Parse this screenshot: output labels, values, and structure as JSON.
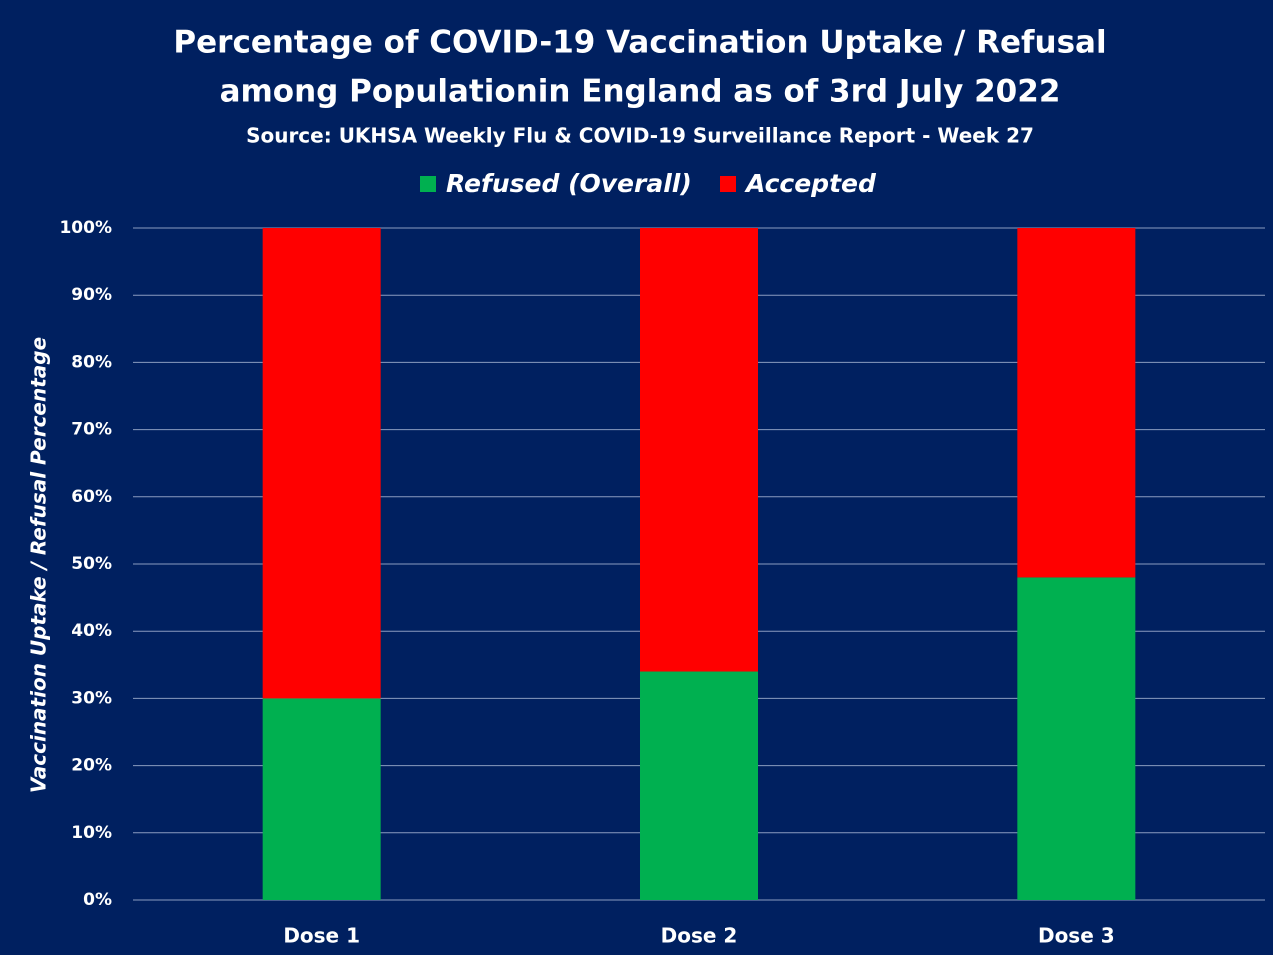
{
  "chart_data": {
    "type": "bar",
    "stacked": true,
    "title": [
      "Percentage of COVID-19 Vaccination Uptake / Refusal",
      "among Populationin England as of 3rd July 2022"
    ],
    "subtitle": "Source: UKHSA Weekly Flu & COVID-19 Surveillance Report - Week 27",
    "y_label": "Vaccination Uptake / Refusal Percentage",
    "categories": [
      "Dose 1",
      "Dose 2",
      "Dose 3"
    ],
    "series": [
      {
        "name": "Refused (Overall)",
        "color": "#00b050",
        "values": [
          30,
          34,
          48
        ]
      },
      {
        "name": "Accepted",
        "color": "#ff0000",
        "values": [
          70,
          66,
          52
        ]
      }
    ],
    "ylim": [
      0,
      100
    ],
    "yticks": [
      {
        "value": 0,
        "label": "0%"
      },
      {
        "value": 10,
        "label": "10%"
      },
      {
        "value": 20,
        "label": "20%"
      },
      {
        "value": 30,
        "label": "30%"
      },
      {
        "value": 40,
        "label": "40%"
      },
      {
        "value": 50,
        "label": "50%"
      },
      {
        "value": 60,
        "label": "60%"
      },
      {
        "value": 70,
        "label": "70%"
      },
      {
        "value": 80,
        "label": "80%"
      },
      {
        "value": 90,
        "label": "90%"
      },
      {
        "value": 100,
        "label": "100%"
      }
    ],
    "grid": true,
    "legend": "top"
  }
}
